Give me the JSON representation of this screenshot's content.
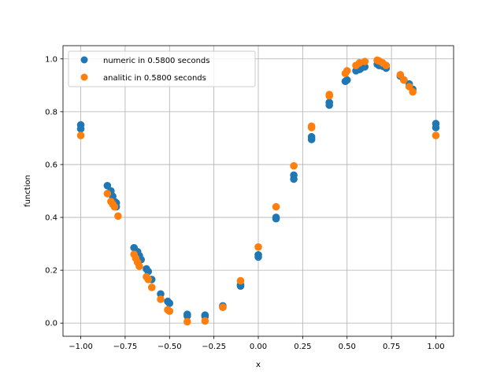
{
  "chart_data": {
    "type": "scatter",
    "xlabel": "x",
    "ylabel": "function",
    "xlim": [
      -1.1,
      1.1
    ],
    "ylim": [
      -0.05,
      1.05
    ],
    "xticks": [
      -1.0,
      -0.75,
      -0.5,
      -0.25,
      0.0,
      0.25,
      0.5,
      0.75,
      1.0
    ],
    "xtick_labels": [
      "−1.00",
      "−0.75",
      "−0.50",
      "−0.25",
      "0.00",
      "0.25",
      "0.50",
      "0.75",
      "1.00"
    ],
    "yticks": [
      0.0,
      0.2,
      0.4,
      0.6,
      0.8,
      1.0
    ],
    "ytick_labels": [
      "0.0",
      "0.2",
      "0.4",
      "0.6",
      "0.8",
      "1.0"
    ],
    "grid": true,
    "legend_position": "top-left",
    "series": [
      {
        "name": "numeric in 0.5800 seconds",
        "color": "#1f77b4",
        "points": [
          [
            -1.0,
            0.75
          ],
          [
            -1.0,
            0.735
          ],
          [
            -0.85,
            0.52
          ],
          [
            -0.83,
            0.5
          ],
          [
            -0.82,
            0.48
          ],
          [
            -0.81,
            0.46
          ],
          [
            -0.8,
            0.455
          ],
          [
            -0.8,
            0.44
          ],
          [
            -0.7,
            0.285
          ],
          [
            -0.68,
            0.27
          ],
          [
            -0.67,
            0.255
          ],
          [
            -0.66,
            0.24
          ],
          [
            -0.63,
            0.205
          ],
          [
            -0.62,
            0.195
          ],
          [
            -0.6,
            0.165
          ],
          [
            -0.55,
            0.11
          ],
          [
            -0.51,
            0.082
          ],
          [
            -0.5,
            0.075
          ],
          [
            -0.4,
            0.033
          ],
          [
            -0.4,
            0.027
          ],
          [
            -0.3,
            0.03
          ],
          [
            -0.3,
            0.025
          ],
          [
            -0.2,
            0.065
          ],
          [
            -0.2,
            0.06
          ],
          [
            -0.1,
            0.145
          ],
          [
            -0.1,
            0.14
          ],
          [
            0.0,
            0.258
          ],
          [
            0.0,
            0.25
          ],
          [
            0.1,
            0.4
          ],
          [
            0.1,
            0.395
          ],
          [
            0.2,
            0.56
          ],
          [
            0.2,
            0.545
          ],
          [
            0.3,
            0.705
          ],
          [
            0.3,
            0.695
          ],
          [
            0.4,
            0.835
          ],
          [
            0.4,
            0.825
          ],
          [
            0.49,
            0.915
          ],
          [
            0.5,
            0.92
          ],
          [
            0.55,
            0.955
          ],
          [
            0.57,
            0.96
          ],
          [
            0.58,
            0.965
          ],
          [
            0.6,
            0.97
          ],
          [
            0.67,
            0.98
          ],
          [
            0.68,
            0.975
          ],
          [
            0.7,
            0.972
          ],
          [
            0.72,
            0.965
          ],
          [
            0.8,
            0.935
          ],
          [
            0.82,
            0.92
          ],
          [
            0.85,
            0.905
          ],
          [
            0.87,
            0.885
          ],
          [
            1.0,
            0.755
          ],
          [
            1.0,
            0.74
          ]
        ]
      },
      {
        "name": "analitic in 0.5800 seconds",
        "color": "#ff7f0e",
        "points": [
          [
            -1.0,
            0.71
          ],
          [
            -0.85,
            0.49
          ],
          [
            -0.83,
            0.46
          ],
          [
            -0.82,
            0.45
          ],
          [
            -0.81,
            0.44
          ],
          [
            -0.79,
            0.405
          ],
          [
            -0.7,
            0.26
          ],
          [
            -0.69,
            0.245
          ],
          [
            -0.68,
            0.23
          ],
          [
            -0.67,
            0.215
          ],
          [
            -0.63,
            0.175
          ],
          [
            -0.62,
            0.165
          ],
          [
            -0.6,
            0.135
          ],
          [
            -0.55,
            0.09
          ],
          [
            -0.51,
            0.05
          ],
          [
            -0.5,
            0.045
          ],
          [
            -0.4,
            0.005
          ],
          [
            -0.3,
            0.008
          ],
          [
            -0.2,
            0.06
          ],
          [
            -0.1,
            0.16
          ],
          [
            0.0,
            0.288
          ],
          [
            0.1,
            0.44
          ],
          [
            0.2,
            0.595
          ],
          [
            0.3,
            0.745
          ],
          [
            0.3,
            0.74
          ],
          [
            0.4,
            0.865
          ],
          [
            0.4,
            0.86
          ],
          [
            0.49,
            0.945
          ],
          [
            0.5,
            0.955
          ],
          [
            0.55,
            0.975
          ],
          [
            0.57,
            0.985
          ],
          [
            0.6,
            0.99
          ],
          [
            0.67,
            0.995
          ],
          [
            0.68,
            0.992
          ],
          [
            0.7,
            0.985
          ],
          [
            0.72,
            0.975
          ],
          [
            0.8,
            0.94
          ],
          [
            0.82,
            0.92
          ],
          [
            0.85,
            0.895
          ],
          [
            0.87,
            0.875
          ],
          [
            1.0,
            0.71
          ]
        ]
      }
    ]
  }
}
